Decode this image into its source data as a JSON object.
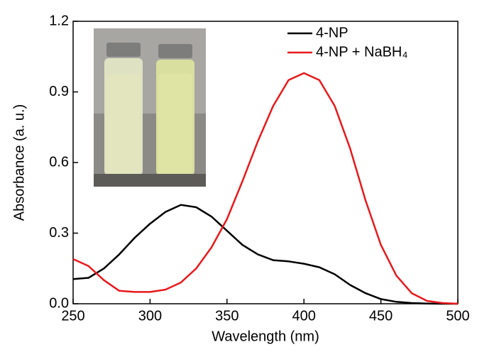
{
  "chart_data": {
    "type": "line",
    "x_label": "Wavelength (nm)",
    "y_label": "Absorbance (a. u.)",
    "x": [
      250,
      260,
      270,
      280,
      290,
      300,
      310,
      320,
      330,
      340,
      350,
      360,
      370,
      380,
      390,
      400,
      410,
      420,
      430,
      440,
      450,
      460,
      470,
      480,
      490,
      500
    ],
    "series": [
      {
        "name": "4-NP",
        "color": "#000000",
        "values": [
          0.105,
          0.11,
          0.15,
          0.21,
          0.28,
          0.34,
          0.39,
          0.42,
          0.41,
          0.37,
          0.31,
          0.25,
          0.21,
          0.185,
          0.18,
          0.17,
          0.155,
          0.125,
          0.08,
          0.045,
          0.02,
          0.008,
          0.003,
          0.001,
          0,
          0
        ]
      },
      {
        "name": "4-NP + NaBH₄",
        "color": "#e8191c",
        "values": [
          0.19,
          0.16,
          0.1,
          0.055,
          0.05,
          0.05,
          0.06,
          0.09,
          0.15,
          0.24,
          0.36,
          0.52,
          0.69,
          0.84,
          0.95,
          0.98,
          0.95,
          0.84,
          0.66,
          0.44,
          0.25,
          0.12,
          0.045,
          0.012,
          0.003,
          0
        ]
      }
    ],
    "xlim": [
      250,
      500
    ],
    "ylim": [
      0,
      1.2
    ],
    "xticks": [
      250,
      300,
      350,
      400,
      450,
      500
    ],
    "yticks": [
      {
        "value": 0,
        "label": "0.0"
      },
      0.3,
      0.6,
      0.9,
      1.2
    ],
    "legend": "top-right"
  }
}
